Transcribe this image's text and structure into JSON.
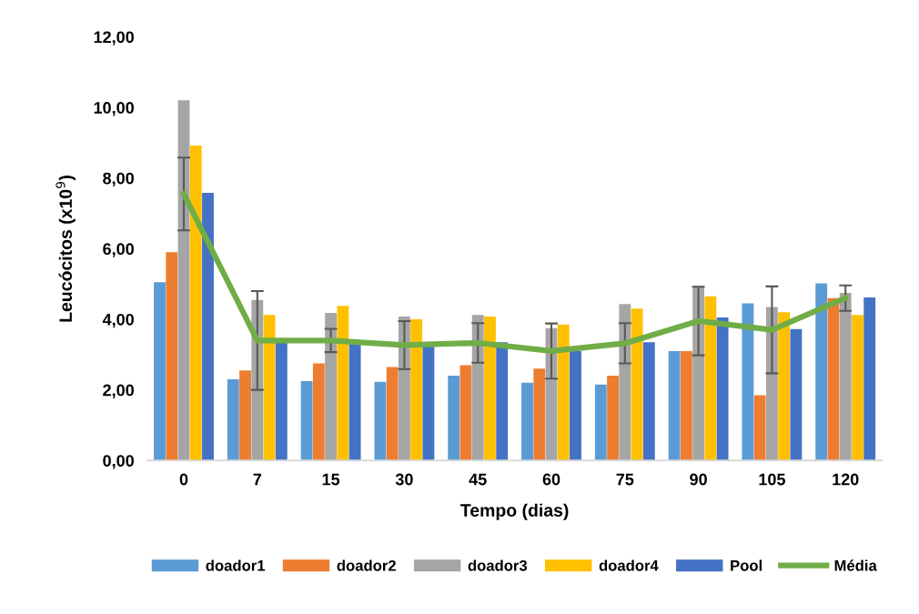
{
  "chart_data": {
    "type": "bar",
    "xlabel": "Tempo (dias)",
    "ylabel": "Leucócitos (x10$^{9}$)",
    "categories": [
      "0",
      "7",
      "15",
      "30",
      "45",
      "60",
      "75",
      "90",
      "105",
      "120"
    ],
    "series": [
      {
        "name": "doador1",
        "color": "#5b9bd5",
        "values": [
          5.05,
          2.3,
          2.25,
          2.23,
          2.4,
          2.2,
          2.15,
          3.1,
          4.45,
          5.02
        ]
      },
      {
        "name": "doador2",
        "color": "#ed7d31",
        "values": [
          5.9,
          2.55,
          2.75,
          2.65,
          2.7,
          2.6,
          2.4,
          3.1,
          1.85,
          4.6
        ]
      },
      {
        "name": "doador3",
        "color": "#a5a5a5",
        "values": [
          10.2,
          4.55,
          4.18,
          4.08,
          4.12,
          3.75,
          4.43,
          4.95,
          4.35,
          4.75
        ]
      },
      {
        "name": "doador4",
        "color": "#ffc000",
        "values": [
          8.92,
          4.12,
          4.38,
          4.0,
          4.08,
          3.85,
          4.3,
          4.65,
          4.2,
          4.12
        ]
      },
      {
        "name": "Pool",
        "color": "#4472c4",
        "values": [
          7.58,
          3.4,
          3.35,
          3.25,
          3.35,
          3.1,
          3.35,
          4.05,
          3.72,
          4.62
        ]
      },
      {
        "name": "Média",
        "type": "line",
        "color": "#70ad47",
        "values": [
          7.55,
          3.4,
          3.4,
          3.27,
          3.33,
          3.1,
          3.32,
          3.95,
          3.7,
          4.6
        ],
        "errors": [
          1.03,
          1.4,
          0.33,
          0.68,
          0.56,
          0.78,
          0.57,
          0.97,
          1.23,
          0.36
        ]
      }
    ],
    "ylim": [
      0,
      12
    ],
    "yticks": [
      {
        "value": 0,
        "label": "0,00"
      },
      {
        "value": 2,
        "label": "2,00"
      },
      {
        "value": 4,
        "label": "4,00"
      },
      {
        "value": 6,
        "label": "6,00"
      },
      {
        "value": 8,
        "label": "8,00"
      },
      {
        "value": 10,
        "label": "10,00"
      },
      {
        "value": 12,
        "label": "12,00"
      }
    ],
    "grid": false,
    "legend": "bottom",
    "marker": "none"
  }
}
